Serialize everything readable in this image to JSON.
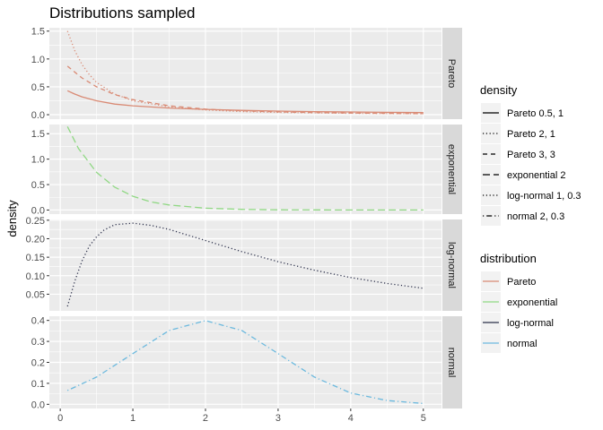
{
  "chart_data": {
    "type": "line",
    "title": "Distributions sampled",
    "xlabel": "",
    "ylabel": "density",
    "xlim": [
      -0.15,
      5.25
    ],
    "x_ticks": [
      0,
      1,
      2,
      3,
      4,
      5
    ],
    "grid": true,
    "facet_by": "distribution",
    "panels": [
      {
        "strip": "Pareto",
        "ylim": [
          -0.08,
          1.56
        ],
        "y_ticks": [
          "0.0",
          "0.5",
          "1.0",
          "1.5"
        ],
        "y_tick_values": [
          0,
          0.5,
          1.0,
          1.5
        ],
        "series": [
          {
            "density": "Pareto 0.5, 1",
            "distribution": "Pareto",
            "x": [
              0.1,
              0.2,
              0.3,
              0.5,
              0.75,
              1.0,
              1.5,
              2.0,
              2.5,
              3.0,
              3.5,
              4.0,
              4.5,
              5.0
            ],
            "y": [
              0.43,
              0.37,
              0.32,
              0.25,
              0.19,
              0.16,
              0.12,
              0.095,
              0.078,
              0.065,
              0.055,
              0.048,
              0.042,
              0.037
            ]
          },
          {
            "density": "Pareto 2, 1",
            "distribution": "Pareto",
            "x": [
              0.1,
              0.2,
              0.3,
              0.4,
              0.5,
              0.75,
              1.0,
              1.5,
              2.0,
              2.5,
              3.0,
              4.0,
              5.0
            ],
            "y": [
              1.5,
              1.15,
              0.9,
              0.72,
              0.58,
              0.37,
              0.25,
              0.14,
              0.085,
              0.055,
              0.04,
              0.025,
              0.017
            ]
          },
          {
            "density": "Pareto 3, 3",
            "distribution": "Pareto",
            "x": [
              0.1,
              0.3,
              0.5,
              0.75,
              1.0,
              1.5,
              2.0,
              2.5,
              3.0,
              3.5,
              4.0,
              4.5,
              5.0
            ],
            "y": [
              0.87,
              0.66,
              0.5,
              0.36,
              0.27,
              0.16,
              0.1,
              0.07,
              0.05,
              0.037,
              0.029,
              0.023,
              0.018
            ]
          }
        ]
      },
      {
        "strip": "exponential",
        "ylim": [
          -0.08,
          1.68
        ],
        "y_ticks": [
          "0.0",
          "0.5",
          "1.0",
          "1.5"
        ],
        "y_tick_values": [
          0,
          0.5,
          1.0,
          1.5
        ],
        "series": [
          {
            "density": "exponential 2",
            "distribution": "exponential",
            "x": [
              0.1,
              0.25,
              0.5,
              0.75,
              1.0,
              1.25,
              1.5,
              2.0,
              2.5,
              3.0,
              3.5,
              4.0,
              4.5,
              5.0
            ],
            "y": [
              1.64,
              1.21,
              0.74,
              0.45,
              0.27,
              0.16,
              0.1,
              0.037,
              0.013,
              0.005,
              0.002,
              0.0007,
              0.0002,
              0.0001
            ]
          }
        ]
      },
      {
        "strip": "log-normal",
        "ylim": [
          0.005,
          0.252
        ],
        "y_ticks": [
          "0.05",
          "0.10",
          "0.15",
          "0.20",
          "0.25"
        ],
        "y_tick_values": [
          0.05,
          0.1,
          0.15,
          0.2,
          0.25
        ],
        "series": [
          {
            "density": "log-normal 1, 0.3",
            "distribution": "log-normal",
            "x": [
              0.1,
              0.2,
              0.3,
              0.4,
              0.5,
              0.6,
              0.75,
              1.0,
              1.25,
              1.5,
              2.0,
              2.5,
              3.0,
              3.5,
              4.0,
              4.5,
              5.0
            ],
            "y": [
              0.017,
              0.085,
              0.14,
              0.18,
              0.205,
              0.223,
              0.238,
              0.242,
              0.236,
              0.225,
              0.195,
              0.165,
              0.138,
              0.115,
              0.095,
              0.079,
              0.066
            ]
          }
        ]
      },
      {
        "strip": "normal",
        "ylim": [
          -0.02,
          0.42
        ],
        "y_ticks": [
          "0.0",
          "0.1",
          "0.2",
          "0.3",
          "0.4"
        ],
        "y_tick_values": [
          0,
          0.1,
          0.2,
          0.3,
          0.4
        ],
        "series": [
          {
            "density": "normal 2, 0.3",
            "distribution": "normal",
            "x": [
              0.1,
              0.5,
              1.0,
              1.5,
              2.0,
              2.5,
              3.0,
              3.5,
              4.0,
              4.5,
              5.0
            ],
            "y": [
              0.066,
              0.13,
              0.242,
              0.352,
              0.399,
              0.352,
              0.242,
              0.13,
              0.054,
              0.018,
              0.004
            ]
          }
        ]
      }
    ],
    "legends": [
      {
        "title": "density",
        "placement": "right",
        "entries": [
          {
            "label": "Pareto 0.5, 1",
            "dash": "solid"
          },
          {
            "label": "Pareto 2, 1",
            "dash": "dotted"
          },
          {
            "label": "Pareto 3, 3",
            "dash": "dashed"
          },
          {
            "label": "exponential 2",
            "dash": "longdash"
          },
          {
            "label": "log-normal 1, 0.3",
            "dash": "dotted"
          },
          {
            "label": "normal 2, 0.3",
            "dash": "dotdash"
          }
        ]
      },
      {
        "title": "distribution",
        "placement": "right",
        "entries": [
          {
            "label": "Pareto",
            "color": "#d98a74"
          },
          {
            "label": "exponential",
            "color": "#90d884"
          },
          {
            "label": "log-normal",
            "color": "#2b2f4a"
          },
          {
            "label": "normal",
            "color": "#6bb9de"
          }
        ]
      }
    ],
    "colors": {
      "Pareto": "#d98a74",
      "exponential": "#90d884",
      "log-normal": "#2b2f4a",
      "normal": "#6bb9de",
      "panel_background": "#ebebeb",
      "strip_background": "#d9d9d9",
      "grid": "#ffffff"
    },
    "dash_styles": {
      "Pareto 0.5, 1": "solid",
      "Pareto 2, 1": "dotted",
      "Pareto 3, 3": "dashed",
      "exponential 2": "longdash",
      "log-normal 1, 0.3": "dotted",
      "normal 2, 0.3": "dotdash"
    }
  }
}
